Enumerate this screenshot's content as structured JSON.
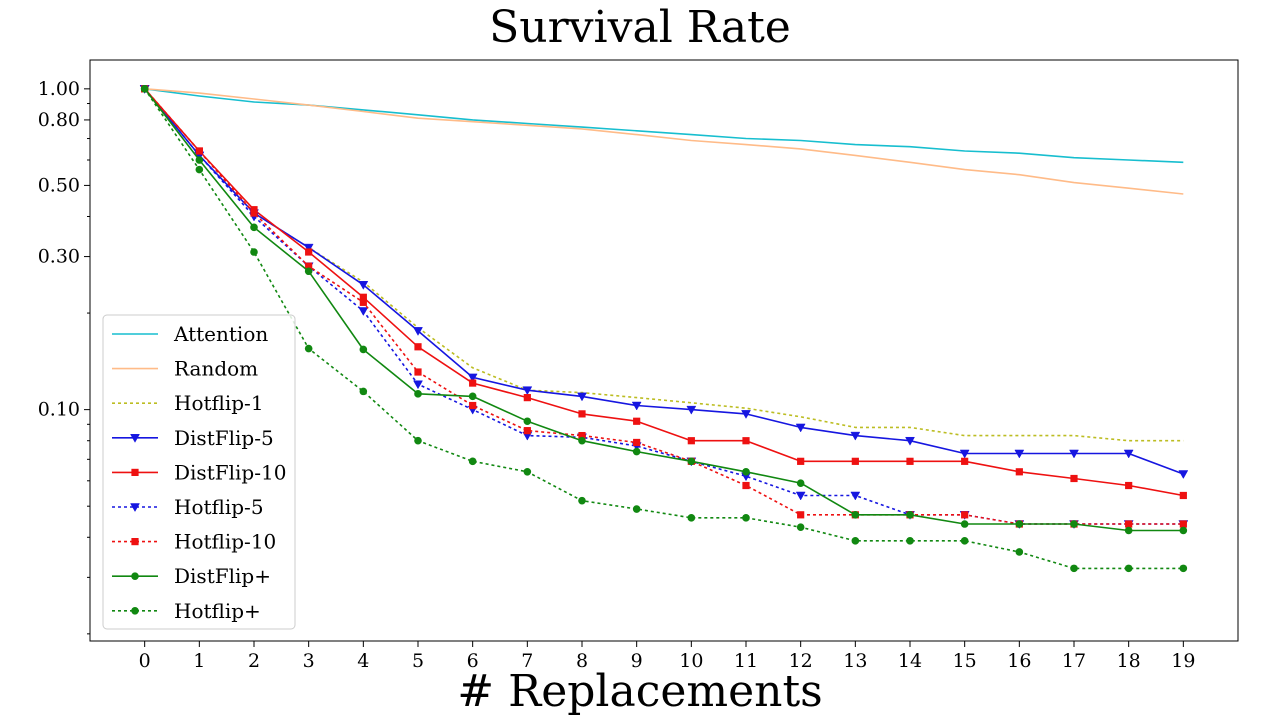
{
  "chart_data": {
    "type": "line",
    "title": "Survival Rate",
    "xlabel": "# Replacements",
    "ylabel": "",
    "yscale": "log",
    "xlim": [
      -1,
      20
    ],
    "ylim": [
      0.019,
      1.23
    ],
    "grid": false,
    "legend_position": "lower-left",
    "x": [
      0,
      1,
      2,
      3,
      4,
      5,
      6,
      7,
      8,
      9,
      10,
      11,
      12,
      13,
      14,
      15,
      16,
      17,
      18,
      19
    ],
    "y_tick_values": [
      1.0,
      0.8,
      0.5,
      0.3,
      0.1
    ],
    "y_tick_labels": [
      "1.00",
      "0.80",
      "0.50",
      "0.30",
      "0.10"
    ],
    "x_tick_labels": [
      "0",
      "1",
      "2",
      "3",
      "4",
      "5",
      "6",
      "7",
      "8",
      "9",
      "10",
      "11",
      "12",
      "13",
      "14",
      "15",
      "16",
      "17",
      "18",
      "19"
    ],
    "series": [
      {
        "name": "Attention",
        "color": "#17becf",
        "style": "solid",
        "marker": "none",
        "values": [
          1.0,
          0.95,
          0.91,
          0.89,
          0.86,
          0.83,
          0.8,
          0.78,
          0.76,
          0.74,
          0.72,
          0.7,
          0.69,
          0.67,
          0.66,
          0.64,
          0.63,
          0.61,
          0.6,
          0.59
        ]
      },
      {
        "name": "Random",
        "color": "#ffbb88",
        "style": "solid",
        "marker": "none",
        "values": [
          1.0,
          0.97,
          0.93,
          0.89,
          0.85,
          0.81,
          0.79,
          0.77,
          0.75,
          0.72,
          0.69,
          0.67,
          0.65,
          0.62,
          0.59,
          0.56,
          0.54,
          0.51,
          0.49,
          0.47
        ]
      },
      {
        "name": "Hotflip-1",
        "color": "#bcbd22",
        "style": "dotted",
        "marker": "none",
        "values": [
          1.0,
          0.64,
          0.41,
          0.32,
          0.25,
          0.18,
          0.135,
          0.115,
          0.113,
          0.109,
          0.105,
          0.101,
          0.095,
          0.088,
          0.088,
          0.083,
          0.083,
          0.083,
          0.08,
          0.08
        ]
      },
      {
        "name": "DistFlip-5",
        "color": "#1616e0",
        "style": "solid",
        "marker": "triangle",
        "values": [
          1.0,
          0.62,
          0.41,
          0.32,
          0.245,
          0.176,
          0.126,
          0.115,
          0.11,
          0.103,
          0.1,
          0.097,
          0.088,
          0.083,
          0.08,
          0.073,
          0.073,
          0.073,
          0.073,
          0.063
        ]
      },
      {
        "name": "DistFlip-10",
        "color": "#ee1111",
        "style": "solid",
        "marker": "square",
        "values": [
          1.0,
          0.64,
          0.42,
          0.31,
          0.224,
          0.157,
          0.121,
          0.109,
          0.097,
          0.092,
          0.08,
          0.08,
          0.069,
          0.069,
          0.069,
          0.069,
          0.064,
          0.061,
          0.058,
          0.054
        ]
      },
      {
        "name": "Hotflip-5",
        "color": "#1616e0",
        "style": "dotted",
        "marker": "triangle",
        "values": [
          1.0,
          0.62,
          0.4,
          0.28,
          0.203,
          0.12,
          0.1,
          0.083,
          0.082,
          0.077,
          0.069,
          0.062,
          0.054,
          0.054,
          0.047,
          0.047,
          0.044,
          0.044,
          0.044,
          0.044
        ]
      },
      {
        "name": "Hotflip-10",
        "color": "#ee1111",
        "style": "dotted",
        "marker": "square",
        "values": [
          1.0,
          0.64,
          0.41,
          0.28,
          0.216,
          0.131,
          0.103,
          0.086,
          0.083,
          0.079,
          0.069,
          0.058,
          0.047,
          0.047,
          0.047,
          0.047,
          0.044,
          0.044,
          0.044,
          0.044
        ]
      },
      {
        "name": "DistFlip+",
        "color": "#118811",
        "style": "solid",
        "marker": "circle",
        "values": [
          1.0,
          0.6,
          0.37,
          0.27,
          0.154,
          0.112,
          0.11,
          0.092,
          0.08,
          0.074,
          0.069,
          0.064,
          0.059,
          0.047,
          0.047,
          0.044,
          0.044,
          0.044,
          0.042,
          0.042
        ]
      },
      {
        "name": "Hotflip+",
        "color": "#118811",
        "style": "dotted",
        "marker": "circle",
        "values": [
          1.0,
          0.56,
          0.31,
          0.155,
          0.114,
          0.08,
          0.069,
          0.064,
          0.052,
          0.049,
          0.046,
          0.046,
          0.043,
          0.039,
          0.039,
          0.039,
          0.036,
          0.032,
          0.032,
          0.032
        ]
      }
    ]
  }
}
